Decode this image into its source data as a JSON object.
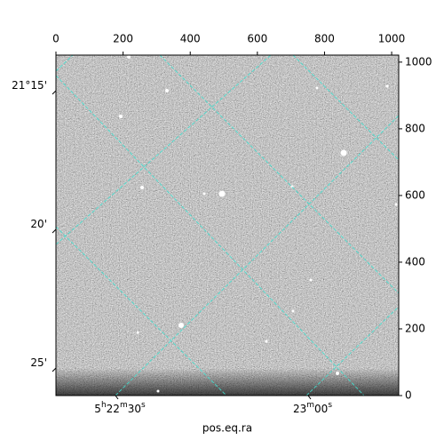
{
  "chart_data": {
    "type": "image",
    "xlabel": "pos.eq.ra",
    "xlim": [
      0,
      1021
    ],
    "ylim": [
      0,
      1021
    ],
    "xticks": [
      0,
      200,
      400,
      600,
      800,
      1000
    ],
    "yticks": [
      0,
      200,
      400,
      600,
      800,
      1000
    ],
    "grid_color": "#40e0d0",
    "dec_ticks": [
      [
        "21°15'"
      ],
      [
        "20'"
      ],
      [
        "25'"
      ]
    ],
    "ra_ticks": [
      [
        "5",
        "h",
        "22",
        "m",
        "30",
        "s"
      ],
      [
        "23",
        "m",
        "00",
        "s"
      ]
    ]
  }
}
